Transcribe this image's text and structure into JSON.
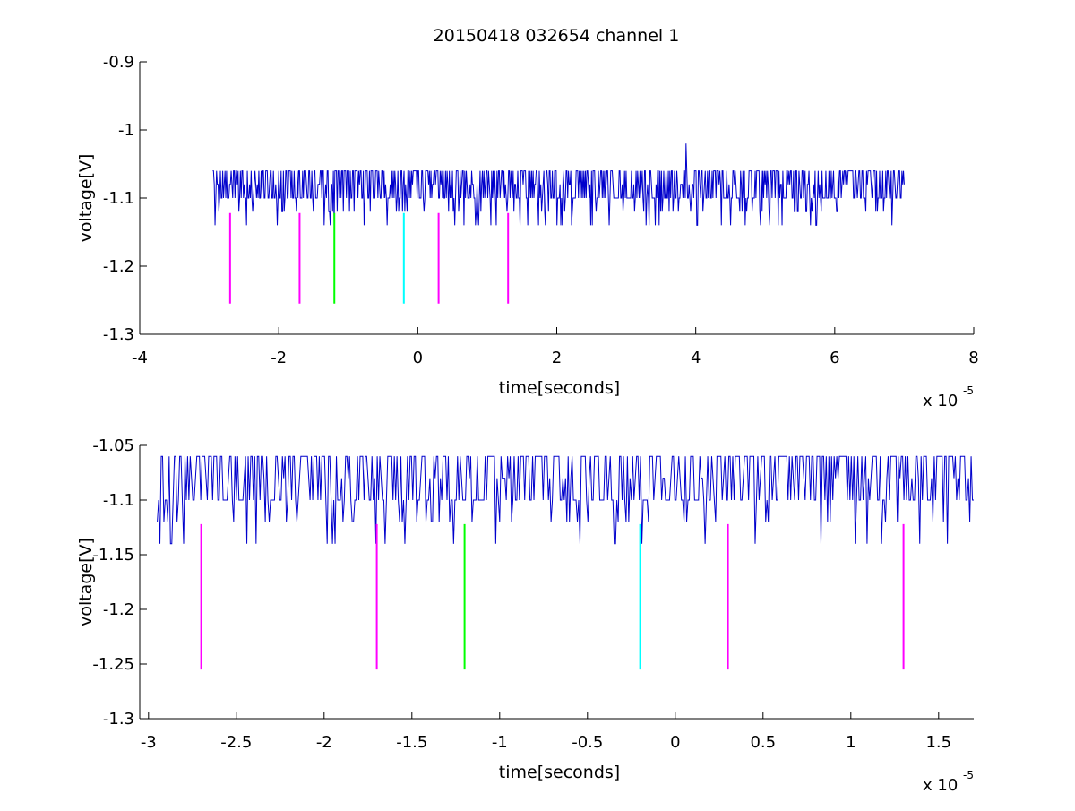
{
  "figure_title": "20150418 032654 channel 1",
  "chart_data": [
    {
      "type": "line",
      "title": "20150418 032654 channel 1",
      "xlabel": "time[seconds]",
      "ylabel": "voltage[V]",
      "x_exponent_base": "x 10",
      "x_exponent_power": "-5",
      "xlim": [
        -4,
        8
      ],
      "ylim": [
        -1.3,
        -0.9
      ],
      "xticks": [
        -4,
        -2,
        0,
        2,
        4,
        6,
        8
      ],
      "xtick_labels": [
        "-4",
        "-2",
        "0",
        "2",
        "4",
        "6",
        "8"
      ],
      "yticks": [
        -1.3,
        -1.2,
        -1.1,
        -1,
        -0.9
      ],
      "ytick_labels": [
        "-1.3",
        "-1.2",
        "-1.1",
        "-1",
        "-0.9"
      ],
      "grid": false,
      "signal": {
        "color": "#0000cc",
        "x_start": -2.95,
        "x_end": 7.0,
        "baseline": -1.1,
        "levels": [
          -1.14,
          -1.12,
          -1.1,
          -1.08,
          -1.06
        ],
        "spike": {
          "x": 3.86,
          "y": -1.02
        }
      },
      "markers": [
        {
          "x": -2.7,
          "y_top": -1.122,
          "y_bottom": -1.255,
          "color": "#ff00ff"
        },
        {
          "x": -1.7,
          "y_top": -1.122,
          "y_bottom": -1.255,
          "color": "#ff00ff"
        },
        {
          "x": -1.2,
          "y_top": -1.122,
          "y_bottom": -1.255,
          "color": "#00ff00"
        },
        {
          "x": -0.2,
          "y_top": -1.122,
          "y_bottom": -1.255,
          "color": "#00ffff"
        },
        {
          "x": 0.3,
          "y_top": -1.122,
          "y_bottom": -1.255,
          "color": "#ff00ff"
        },
        {
          "x": 1.3,
          "y_top": -1.122,
          "y_bottom": -1.255,
          "color": "#ff00ff"
        }
      ]
    },
    {
      "type": "line",
      "title": "",
      "xlabel": "time[seconds]",
      "ylabel": "voltage[V]",
      "x_exponent_base": "x 10",
      "x_exponent_power": "-5",
      "xlim": [
        -3.05,
        1.7
      ],
      "ylim": [
        -1.3,
        -1.05
      ],
      "xticks": [
        -3,
        -2.5,
        -2,
        -1.5,
        -1,
        -0.5,
        0,
        0.5,
        1,
        1.5
      ],
      "xtick_labels": [
        "-3",
        "-2.5",
        "-2",
        "-1.5",
        "-1",
        "-0.5",
        "0",
        "0.5",
        "1",
        "1.5"
      ],
      "yticks": [
        -1.3,
        -1.25,
        -1.2,
        -1.15,
        -1.1,
        -1.05
      ],
      "ytick_labels": [
        "-1.3",
        "-1.25",
        "-1.2",
        "-1.15",
        "-1.1",
        "-1.05"
      ],
      "grid": false,
      "signal": {
        "color": "#0000cc",
        "x_start": -2.95,
        "x_end": 1.7,
        "baseline": -1.1,
        "levels": [
          -1.14,
          -1.12,
          -1.1,
          -1.08,
          -1.06
        ]
      },
      "markers": [
        {
          "x": -2.7,
          "y_top": -1.122,
          "y_bottom": -1.255,
          "color": "#ff00ff"
        },
        {
          "x": -1.7,
          "y_top": -1.122,
          "y_bottom": -1.255,
          "color": "#ff00ff"
        },
        {
          "x": -1.2,
          "y_top": -1.122,
          "y_bottom": -1.255,
          "color": "#00ff00"
        },
        {
          "x": -0.2,
          "y_top": -1.122,
          "y_bottom": -1.255,
          "color": "#00ffff"
        },
        {
          "x": 0.3,
          "y_top": -1.122,
          "y_bottom": -1.255,
          "color": "#ff00ff"
        },
        {
          "x": 1.3,
          "y_top": -1.122,
          "y_bottom": -1.255,
          "color": "#ff00ff"
        }
      ]
    }
  ]
}
